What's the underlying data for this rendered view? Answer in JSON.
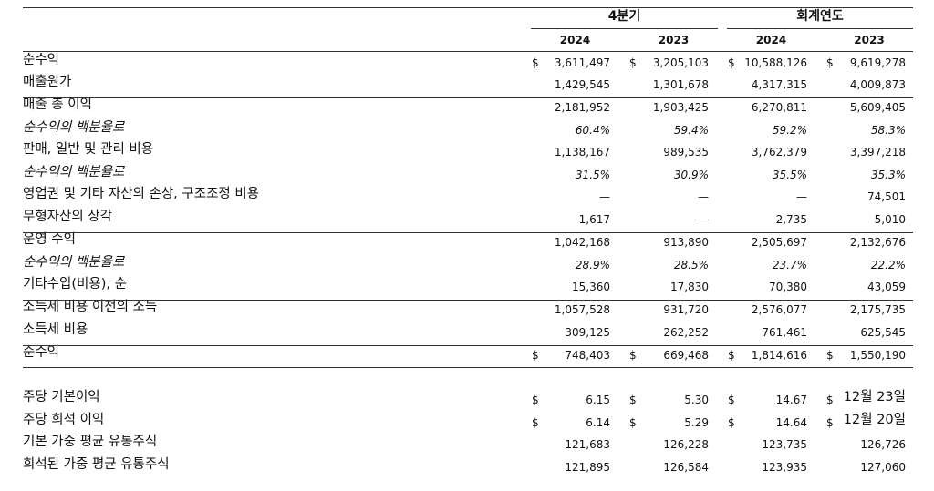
{
  "header": {
    "quarter_label": "4분기",
    "fiscal_label": "회계연도",
    "years": [
      "2024",
      "2023",
      "2024",
      "2023"
    ]
  },
  "currency_symbol": "$",
  "rows": [
    {
      "label": "순수익",
      "italic": false,
      "dollar": true,
      "values": [
        "3,611,497",
        "3,205,103",
        "10,588,126",
        "9,619,278"
      ]
    },
    {
      "label": "매출원가",
      "italic": false,
      "dollar": false,
      "values": [
        "1,429,545",
        "1,301,678",
        "4,317,315",
        "4,009,873"
      ]
    },
    {
      "label": "매출 총 이익",
      "italic": false,
      "dollar": false,
      "values": [
        "2,181,952",
        "1,903,425",
        "6,270,811",
        "5,609,405"
      ]
    },
    {
      "label": "순수익의 백분율로",
      "italic": true,
      "dollar": false,
      "values": [
        "60.4%",
        "59.4%",
        "59.2%",
        "58.3%"
      ]
    },
    {
      "label": "판매, 일반 및 관리 비용",
      "italic": false,
      "dollar": false,
      "values": [
        "1,138,167",
        "989,535",
        "3,762,379",
        "3,397,218"
      ]
    },
    {
      "label": "순수익의 백분율로",
      "italic": true,
      "dollar": false,
      "values": [
        "31.5%",
        "30.9%",
        "35.5%",
        "35.3%"
      ]
    },
    {
      "label": "영업권 및 기타 자산의 손상, 구조조정 비용",
      "italic": false,
      "dollar": false,
      "values": [
        "—",
        "—",
        "—",
        "74,501"
      ]
    },
    {
      "label": "무형자산의 상각",
      "italic": false,
      "dollar": false,
      "values": [
        "1,617",
        "—",
        "2,735",
        "5,010"
      ]
    },
    {
      "label": "운영 수익",
      "italic": false,
      "dollar": false,
      "values": [
        "1,042,168",
        "913,890",
        "2,505,697",
        "2,132,676"
      ]
    },
    {
      "label": "순수익의 백분율로",
      "italic": true,
      "dollar": false,
      "values": [
        "28.9%",
        "28.5%",
        "23.7%",
        "22.2%"
      ]
    },
    {
      "label": "기타수입(비용), 순",
      "italic": false,
      "dollar": false,
      "values": [
        "15,360",
        "17,830",
        "70,380",
        "43,059"
      ]
    },
    {
      "label": "소득세 비용 이전의 소득",
      "italic": false,
      "dollar": false,
      "values": [
        "1,057,528",
        "931,720",
        "2,576,077",
        "2,175,735"
      ]
    },
    {
      "label": "소득세 비용",
      "italic": false,
      "dollar": false,
      "values": [
        "309,125",
        "262,252",
        "761,461",
        "625,545"
      ]
    },
    {
      "label": "순수익",
      "italic": false,
      "dollar": true,
      "values": [
        "748,403",
        "669,468",
        "1,814,616",
        "1,550,190"
      ]
    },
    {
      "label": "주당 기본이익",
      "italic": false,
      "dollar": true,
      "values": [
        "6.15",
        "5.30",
        "14.67",
        "12월 23일"
      ]
    },
    {
      "label": "주당 희석 이익",
      "italic": false,
      "dollar": true,
      "values": [
        "6.14",
        "5.29",
        "14.64",
        "12월 20일"
      ]
    },
    {
      "label": "기본 가중 평균 유통주식",
      "italic": false,
      "dollar": false,
      "values": [
        "121,683",
        "126,228",
        "123,735",
        "126,726"
      ]
    },
    {
      "label": "희석된 가중 평균 유통주식",
      "italic": false,
      "dollar": false,
      "values": [
        "121,895",
        "126,584",
        "123,935",
        "127,060"
      ]
    }
  ]
}
